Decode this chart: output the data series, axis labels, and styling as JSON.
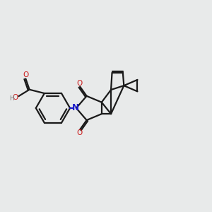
{
  "bg_color": "#e8eaea",
  "bond_color": "#1a1a1a",
  "n_color": "#1a1acc",
  "o_color": "#cc1a1a",
  "h_color": "#777777",
  "lw": 1.6,
  "figsize": [
    3.0,
    3.0
  ],
  "dpi": 100,
  "xlim": [
    -4.2,
    5.8
  ],
  "ylim": [
    -3.2,
    3.2
  ]
}
